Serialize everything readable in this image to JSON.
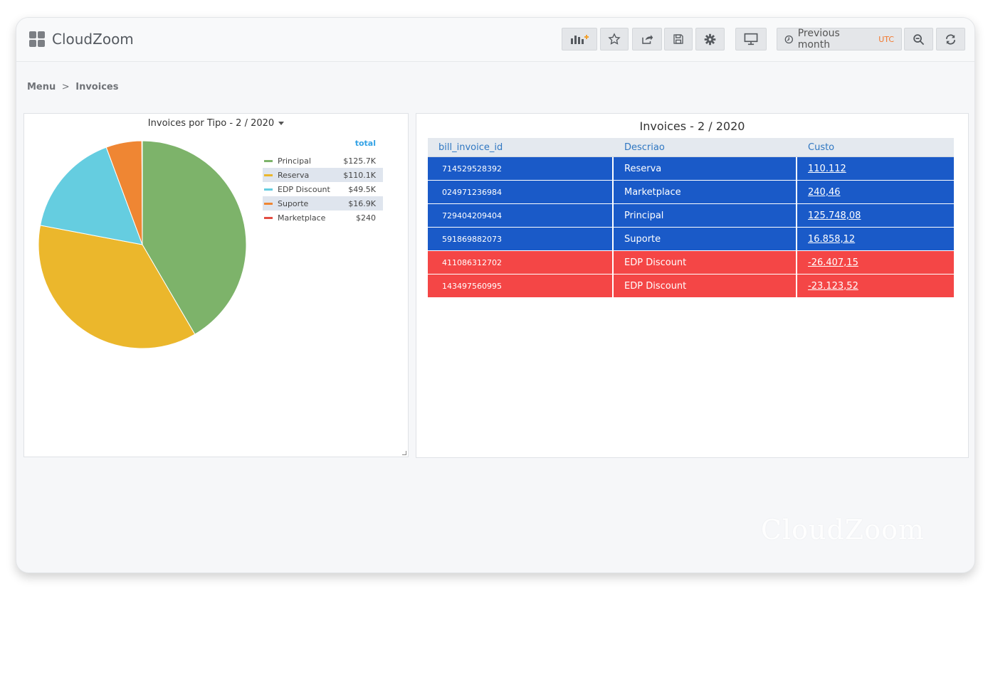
{
  "app": {
    "name": "CloudZoom",
    "watermark": "CloudZoom"
  },
  "toolbar": {
    "buttons": [
      "add-panel",
      "star",
      "share",
      "save",
      "settings",
      "tv-mode"
    ],
    "time_range": "Previous month",
    "timezone": "UTC"
  },
  "breadcrumb": {
    "root": "Menu",
    "separator": ">",
    "current": "Invoices"
  },
  "pie_panel": {
    "title": "Invoices por Tipo - 2 / 2020",
    "legend_header": "total",
    "legend": [
      {
        "label": "Principal",
        "value": "$125.7K",
        "color": "#7db36a"
      },
      {
        "label": "Reserva",
        "value": "$110.1K",
        "color": "#ebb72c"
      },
      {
        "label": "EDP Discount",
        "value": "$49.5K",
        "color": "#65cde0"
      },
      {
        "label": "Suporte",
        "value": "$16.9K",
        "color": "#ef8633"
      },
      {
        "label": "Marketplace",
        "value": "$240",
        "color": "#e24d42"
      }
    ]
  },
  "chart_data": {
    "type": "pie",
    "title": "Invoices por Tipo - 2 / 2020",
    "categories": [
      "Principal",
      "Reserva",
      "EDP Discount",
      "Suporte",
      "Marketplace"
    ],
    "values": [
      125748.08,
      110112,
      49530.67,
      16858.12,
      240.46
    ],
    "colors": [
      "#7db36a",
      "#ebb72c",
      "#65cde0",
      "#ef8633",
      "#e24d42"
    ],
    "legend": "right"
  },
  "table_panel": {
    "title": "Invoices - 2 / 2020",
    "columns": [
      "bill_invoice_id",
      "Descriao",
      "Custo"
    ],
    "rows": [
      {
        "id": "714529528392",
        "descricao": "Reserva",
        "custo": "110.112",
        "color": "#1a5ac8"
      },
      {
        "id": "024971236984",
        "descricao": "Marketplace",
        "custo": "240,46",
        "color": "#1a5ac8"
      },
      {
        "id": "729404209404",
        "descricao": "Principal",
        "custo": "125.748,08",
        "color": "#1a5ac8"
      },
      {
        "id": "591869882073",
        "descricao": "Suporte",
        "custo": "16.858,12",
        "color": "#1a5ac8"
      },
      {
        "id": "411086312702",
        "descricao": "EDP Discount",
        "custo": "-26.407,15",
        "color": "#f44646"
      },
      {
        "id": "143497560995",
        "descricao": "EDP Discount",
        "custo": "-23.123,52",
        "color": "#f44646"
      }
    ]
  }
}
